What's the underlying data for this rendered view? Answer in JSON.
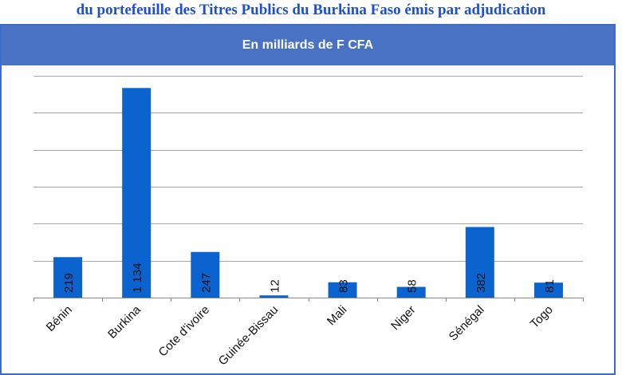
{
  "heading": {
    "title": "du portefeuille des Titres Publics du Burkina Faso émis par adjudication"
  },
  "chart_data": {
    "type": "bar",
    "subtitle": "En milliards de F CFA",
    "categories": [
      "Bénin",
      "Burkina",
      "Cote d'ivoire",
      "Guinée-Bissau",
      "Mali",
      "Niger",
      "Sénégal",
      "Togo"
    ],
    "values": [
      219,
      1134,
      247,
      12,
      83,
      58,
      382,
      81
    ],
    "value_labels": [
      "219",
      "1 134",
      "247",
      "12",
      "83",
      "58",
      "382",
      "81"
    ],
    "ylim": [
      0,
      1200
    ],
    "y_gridlines": [
      0,
      200,
      400,
      600,
      800,
      1000,
      1200
    ],
    "y_tick_labels_shown": false,
    "grid": true,
    "legend": "none",
    "colors": {
      "bar": "#0b63cf",
      "grid": "#a6a6a6",
      "banner": "#4a72c4",
      "heading": "#1f4fd1"
    }
  }
}
